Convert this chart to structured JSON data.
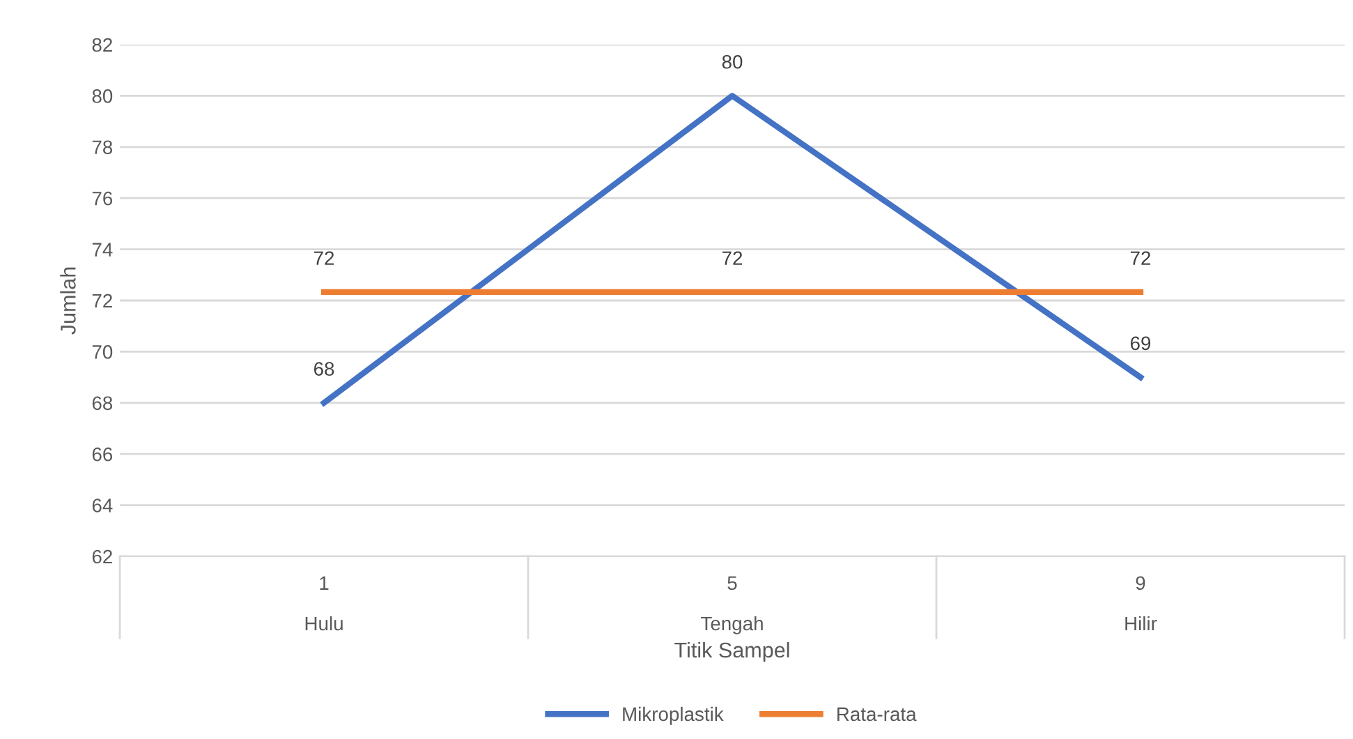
{
  "chart_data": {
    "type": "line",
    "xlabel": "Titik Sampel",
    "ylabel": "Jumlah",
    "categories": [
      "1\nHulu",
      "5\nTengah",
      "9\nHilir"
    ],
    "series": [
      {
        "name": "Mikroplastik",
        "color": "#4472c4",
        "values": [
          68,
          80,
          69
        ],
        "value_labels": [
          "68",
          "80",
          "69"
        ]
      },
      {
        "name": "Rata-rata",
        "color": "#ed7d31",
        "values": [
          72.33,
          72.33,
          72.33
        ],
        "value_labels": [
          "72",
          "72",
          "72"
        ]
      }
    ],
    "ylim": [
      62,
      82
    ],
    "yticks": [
      62,
      64,
      66,
      68,
      70,
      72,
      74,
      76,
      78,
      80,
      82
    ],
    "grid": "y",
    "legend": "bottom",
    "marker": "none",
    "line_style": "solid"
  }
}
